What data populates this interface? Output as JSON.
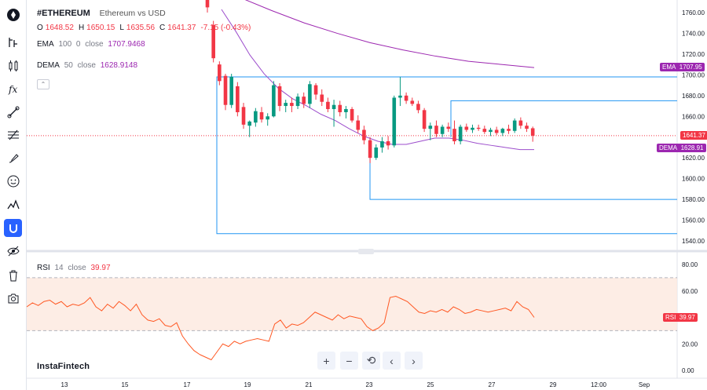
{
  "header": {
    "symbol": "#ETHEREUM",
    "description": "Ethereum vs USD",
    "ohlc": [
      {
        "label": "O",
        "value": "1648.52"
      },
      {
        "label": "H",
        "value": "1650.15"
      },
      {
        "label": "L",
        "value": "1635.56"
      },
      {
        "label": "C",
        "value": "1641.37"
      }
    ],
    "change": "-7.15 (-0.43%)"
  },
  "indicators": {
    "ema": {
      "name": "EMA",
      "length": "100",
      "source": "0",
      "field": "close",
      "value": "1707.9468"
    },
    "dema": {
      "name": "DEMA",
      "length": "50",
      "field": "close",
      "value": "1628.9148"
    },
    "rsi": {
      "name": "RSI",
      "length": "14",
      "field": "close",
      "value": "39.97"
    }
  },
  "axis_tags": {
    "ema": {
      "label": "EMA",
      "value": "1707.95"
    },
    "price": {
      "value": "1641.37"
    },
    "dema": {
      "label": "DEMA",
      "value": "1628.91"
    },
    "rsi": {
      "label": "RSI",
      "value": "39.97"
    }
  },
  "brand": "InstaFintech",
  "toolbar": [
    "tradingview-logo-icon",
    "chart-type-icon",
    "candles-icon",
    "fx-icon",
    "trend-line-icon",
    "fib-icon",
    "brush-icon",
    "emoji-icon",
    "measure-icon",
    "magnet-icon",
    "eye-icon",
    "trash-icon",
    "camera-icon"
  ],
  "controls": [
    {
      "name": "zoom-in-button",
      "label": "+"
    },
    {
      "name": "zoom-out-button",
      "label": "−"
    },
    {
      "name": "reset-button",
      "label": "⟲"
    },
    {
      "name": "scroll-left-button",
      "label": "‹"
    },
    {
      "name": "scroll-right-button",
      "label": "›"
    }
  ],
  "colors": {
    "up": "#089981",
    "down": "#f23645",
    "ema": "#9c27b0",
    "dema": "#9c4dcc",
    "rsi": "#ff5722",
    "box": "#2196f3"
  },
  "chart_data": {
    "type": "candlestick",
    "price_axis": {
      "ticks": [
        1540,
        1560,
        1580,
        1600,
        1620,
        1640,
        1660,
        1680,
        1700,
        1720,
        1740,
        1760
      ],
      "ylim": [
        1533,
        1770
      ]
    },
    "rsi_axis": {
      "ticks": [
        "0.00",
        "20.00",
        "40.00",
        "60.00",
        "80.00"
      ],
      "ylim": [
        -2,
        83
      ],
      "upper_band": 70,
      "lower_band": 30
    },
    "x_axis": {
      "ticks": [
        "13",
        "15",
        "17",
        "19",
        "21",
        "23",
        "25",
        "27",
        "29",
        "12:00",
        "Sep"
      ]
    },
    "candles": [
      {
        "o": 1785,
        "h": 1790,
        "l": 1760,
        "c": 1765
      },
      {
        "o": 1748,
        "h": 1752,
        "l": 1712,
        "c": 1716
      },
      {
        "o": 1710,
        "h": 1713,
        "l": 1690,
        "c": 1694
      },
      {
        "o": 1699,
        "h": 1701,
        "l": 1666,
        "c": 1671
      },
      {
        "o": 1671,
        "h": 1701,
        "l": 1668,
        "c": 1698
      },
      {
        "o": 1689,
        "h": 1693,
        "l": 1660,
        "c": 1664
      },
      {
        "o": 1669,
        "h": 1673,
        "l": 1648,
        "c": 1652
      },
      {
        "o": 1651,
        "h": 1656,
        "l": 1640,
        "c": 1655
      },
      {
        "o": 1654,
        "h": 1668,
        "l": 1650,
        "c": 1665
      },
      {
        "o": 1664,
        "h": 1669,
        "l": 1654,
        "c": 1657
      },
      {
        "o": 1657,
        "h": 1663,
        "l": 1651,
        "c": 1660
      },
      {
        "o": 1660,
        "h": 1694,
        "l": 1659,
        "c": 1690
      },
      {
        "o": 1689,
        "h": 1692,
        "l": 1665,
        "c": 1670
      },
      {
        "o": 1670,
        "h": 1676,
        "l": 1664,
        "c": 1673
      },
      {
        "o": 1673,
        "h": 1678,
        "l": 1664,
        "c": 1670
      },
      {
        "o": 1670,
        "h": 1682,
        "l": 1667,
        "c": 1679
      },
      {
        "o": 1679,
        "h": 1683,
        "l": 1668,
        "c": 1672
      },
      {
        "o": 1672,
        "h": 1694,
        "l": 1668,
        "c": 1691
      },
      {
        "o": 1690,
        "h": 1692,
        "l": 1676,
        "c": 1681
      },
      {
        "o": 1681,
        "h": 1686,
        "l": 1670,
        "c": 1674
      },
      {
        "o": 1674,
        "h": 1678,
        "l": 1664,
        "c": 1667
      },
      {
        "o": 1667,
        "h": 1676,
        "l": 1650,
        "c": 1671
      },
      {
        "o": 1671,
        "h": 1675,
        "l": 1660,
        "c": 1664
      },
      {
        "o": 1664,
        "h": 1670,
        "l": 1658,
        "c": 1667
      },
      {
        "o": 1667,
        "h": 1669,
        "l": 1654,
        "c": 1656
      },
      {
        "o": 1656,
        "h": 1661,
        "l": 1644,
        "c": 1647
      },
      {
        "o": 1647,
        "h": 1651,
        "l": 1633,
        "c": 1637
      },
      {
        "o": 1637,
        "h": 1640,
        "l": 1615,
        "c": 1620
      },
      {
        "o": 1620,
        "h": 1633,
        "l": 1618,
        "c": 1630
      },
      {
        "o": 1630,
        "h": 1640,
        "l": 1625,
        "c": 1636
      },
      {
        "o": 1636,
        "h": 1641,
        "l": 1628,
        "c": 1632
      },
      {
        "o": 1632,
        "h": 1680,
        "l": 1630,
        "c": 1678
      },
      {
        "o": 1678,
        "h": 1698,
        "l": 1670,
        "c": 1680
      },
      {
        "o": 1680,
        "h": 1683,
        "l": 1672,
        "c": 1675
      },
      {
        "o": 1675,
        "h": 1678,
        "l": 1670,
        "c": 1672
      },
      {
        "o": 1672,
        "h": 1675,
        "l": 1663,
        "c": 1666
      },
      {
        "o": 1666,
        "h": 1668,
        "l": 1645,
        "c": 1648
      },
      {
        "o": 1648,
        "h": 1654,
        "l": 1637,
        "c": 1651
      },
      {
        "o": 1651,
        "h": 1656,
        "l": 1640,
        "c": 1643
      },
      {
        "o": 1643,
        "h": 1652,
        "l": 1640,
        "c": 1650
      },
      {
        "o": 1650,
        "h": 1654,
        "l": 1645,
        "c": 1648
      },
      {
        "o": 1648,
        "h": 1656,
        "l": 1633,
        "c": 1636
      },
      {
        "o": 1636,
        "h": 1652,
        "l": 1633,
        "c": 1650
      },
      {
        "o": 1650,
        "h": 1653,
        "l": 1645,
        "c": 1647
      },
      {
        "o": 1647,
        "h": 1652,
        "l": 1644,
        "c": 1649
      },
      {
        "o": 1649,
        "h": 1652,
        "l": 1646,
        "c": 1648
      },
      {
        "o": 1648,
        "h": 1651,
        "l": 1643,
        "c": 1645
      },
      {
        "o": 1645,
        "h": 1649,
        "l": 1641,
        "c": 1647
      },
      {
        "o": 1647,
        "h": 1650,
        "l": 1642,
        "c": 1644
      },
      {
        "o": 1644,
        "h": 1649,
        "l": 1641,
        "c": 1648
      },
      {
        "o": 1648,
        "h": 1652,
        "l": 1643,
        "c": 1646
      },
      {
        "o": 1646,
        "h": 1658,
        "l": 1644,
        "c": 1656
      },
      {
        "o": 1656,
        "h": 1659,
        "l": 1648,
        "c": 1651
      },
      {
        "o": 1651,
        "h": 1654,
        "l": 1645,
        "c": 1648
      },
      {
        "o": 1648.52,
        "h": 1650.15,
        "l": 1635.56,
        "c": 1641.37
      }
    ],
    "ema_series": [
      1790,
      1775,
      1762,
      1750,
      1740,
      1731,
      1724,
      1718,
      1713,
      1710,
      1707
    ],
    "dema_series": [
      1763,
      1742,
      1719,
      1701,
      1687,
      1677,
      1670,
      1662,
      1656,
      1648,
      1641,
      1636,
      1633,
      1633,
      1636,
      1639,
      1639,
      1637,
      1634,
      1632,
      1630,
      1628,
      1628
    ],
    "rsi_series": [
      48,
      51,
      49,
      52,
      53,
      50,
      52,
      48,
      50,
      49,
      51,
      55,
      48,
      45,
      50,
      47,
      52,
      49,
      45,
      50,
      42,
      38,
      37,
      39,
      34,
      33,
      36,
      26,
      20,
      15,
      12,
      10,
      8,
      14,
      20,
      18,
      22,
      20,
      22,
      23,
      24,
      23,
      22,
      35,
      38,
      32,
      35,
      34,
      36,
      40,
      44,
      42,
      40,
      38,
      42,
      39,
      41,
      40,
      39,
      33,
      30,
      32,
      36,
      55,
      56,
      54,
      52,
      48,
      44,
      43,
      45,
      44,
      46,
      44,
      48,
      46,
      43,
      44,
      46,
      45,
      44,
      45,
      46,
      47,
      45,
      52,
      48,
      46,
      40
    ],
    "rectangles": [
      {
        "top": 1698,
        "bottom": 1547
      },
      {
        "top": 1675,
        "bottom": 1580
      }
    ],
    "last_price": 1641.37
  }
}
